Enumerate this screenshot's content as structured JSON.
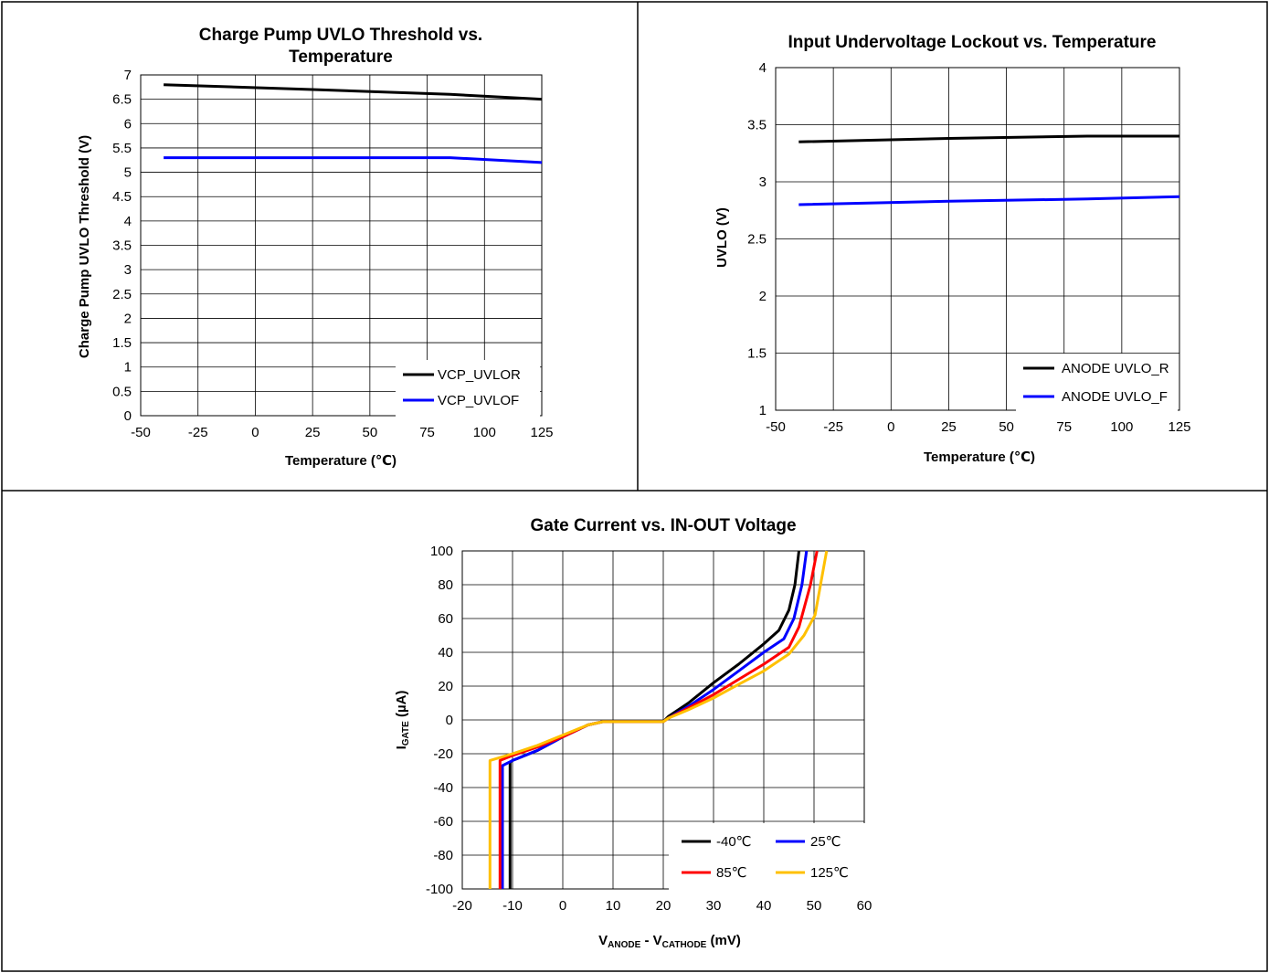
{
  "chart_data": [
    {
      "type": "line",
      "title_lines": [
        "Charge Pump UVLO Threshold vs.",
        "Temperature"
      ],
      "xlabel": "Temperature (℃)",
      "ylabel": "Charge Pump UVLO Threshold (V)",
      "xlim": [
        -50,
        125
      ],
      "ylim": [
        0,
        7
      ],
      "xticks": [
        -50,
        -25,
        0,
        25,
        50,
        75,
        100,
        125
      ],
      "yticks": [
        0,
        0.5,
        1,
        1.5,
        2,
        2.5,
        3,
        3.5,
        4,
        4.5,
        5,
        5.5,
        6,
        6.5,
        7
      ],
      "ytick_labels": [
        "0",
        "0.5",
        "1",
        "1.5",
        "2",
        "2.5",
        "3",
        "3.5",
        "4",
        "4.5",
        "5",
        "5.5",
        "6",
        "6.5",
        "7"
      ],
      "grid": true,
      "legend_position": "bottom-right",
      "series": [
        {
          "name": "VCP_UVLOR",
          "color": "#000000",
          "x": [
            -40,
            25,
            85,
            125
          ],
          "y": [
            6.8,
            6.7,
            6.6,
            6.5
          ]
        },
        {
          "name": "VCP_UVLOF",
          "color": "#0000ff",
          "x": [
            -40,
            25,
            85,
            125
          ],
          "y": [
            5.3,
            5.3,
            5.3,
            5.2
          ]
        }
      ]
    },
    {
      "type": "line",
      "title_lines": [
        "Input Undervoltage Lockout vs. Temperature"
      ],
      "xlabel": "Temperature (℃)",
      "ylabel": "UVLO (V)",
      "xlim": [
        -50,
        125
      ],
      "ylim": [
        1,
        4
      ],
      "xticks": [
        -50,
        -25,
        0,
        25,
        50,
        75,
        100,
        125
      ],
      "yticks": [
        1,
        1.5,
        2,
        2.5,
        3,
        3.5,
        4
      ],
      "ytick_labels": [
        "1",
        "1.5",
        "2",
        "2.5",
        "3",
        "3.5",
        "4"
      ],
      "grid": true,
      "legend_position": "bottom-right",
      "series": [
        {
          "name": "ANODE UVLO_R",
          "color": "#000000",
          "x": [
            -40,
            25,
            85,
            125
          ],
          "y": [
            3.35,
            3.38,
            3.4,
            3.4
          ]
        },
        {
          "name": "ANODE UVLO_F",
          "color": "#0000ff",
          "x": [
            -40,
            25,
            85,
            125
          ],
          "y": [
            2.8,
            2.83,
            2.85,
            2.87
          ]
        }
      ]
    },
    {
      "type": "line",
      "title_lines": [
        "Gate Current vs. IN-OUT Voltage"
      ],
      "xlabel": "VANODE - VCATHODE (mV)",
      "xlabel_parts": {
        "v1": "V",
        "s1": "ANODE",
        "mid": " - V",
        "s2": "CATHODE",
        "end": " (mV)"
      },
      "ylabel": "IGATE (µA)",
      "ylabel_parts": {
        "v": "I",
        "sub": "GATE",
        "end": " (µA)"
      },
      "xlim": [
        -20,
        60
      ],
      "ylim": [
        -100,
        100
      ],
      "xticks": [
        -20,
        -10,
        0,
        10,
        20,
        30,
        40,
        50,
        60
      ],
      "yticks": [
        -100,
        -80,
        -60,
        -40,
        -20,
        0,
        20,
        40,
        60,
        80,
        100
      ],
      "ytick_labels": [
        "-100",
        "-80",
        "-60",
        "-40",
        "-20",
        "0",
        "20",
        "40",
        "60",
        "80",
        "100"
      ],
      "grid": true,
      "legend_position": "bottom-right",
      "series": [
        {
          "name": "-40℃",
          "color": "#000000",
          "x": [
            -10.5,
            -10.5,
            -10,
            -5,
            0,
            5,
            8,
            20,
            21,
            25,
            30,
            35,
            40,
            43,
            45,
            46.2,
            47
          ],
          "y": [
            -100,
            -25,
            -24,
            -18,
            -10,
            -3,
            -1,
            -1,
            2,
            10,
            22,
            33,
            45,
            53,
            65,
            80,
            100
          ]
        },
        {
          "name": "25℃",
          "color": "#0000ff",
          "x": [
            -12,
            -12,
            -10,
            -5,
            0,
            5,
            8,
            20,
            21,
            25,
            30,
            35,
            40,
            44,
            46,
            47.6,
            48.5
          ],
          "y": [
            -100,
            -27,
            -24,
            -18,
            -10,
            -3,
            -1,
            -1,
            1,
            8,
            18,
            29,
            40,
            48,
            60,
            80,
            100
          ]
        },
        {
          "name": "85℃",
          "color": "#ff0000",
          "x": [
            -12.5,
            -12.5,
            -10,
            -5,
            0,
            5,
            8,
            20,
            21,
            25,
            30,
            35,
            40,
            45,
            47,
            49.3,
            50.6
          ],
          "y": [
            -100,
            -24,
            -21,
            -16,
            -10,
            -3,
            -1,
            -1,
            1,
            7,
            15,
            24,
            33,
            43,
            55,
            80,
            100
          ]
        },
        {
          "name": "125℃",
          "color": "#ffc000",
          "x": [
            -14.5,
            -14.5,
            -10,
            -5,
            0,
            5,
            8,
            20,
            21,
            25,
            30,
            35,
            40,
            45,
            48,
            50.2,
            52.5
          ],
          "y": [
            -100,
            -24,
            -20,
            -15,
            -9,
            -3,
            -1,
            -1,
            1,
            6,
            13,
            21,
            29,
            39,
            50,
            62,
            100
          ]
        }
      ]
    }
  ]
}
